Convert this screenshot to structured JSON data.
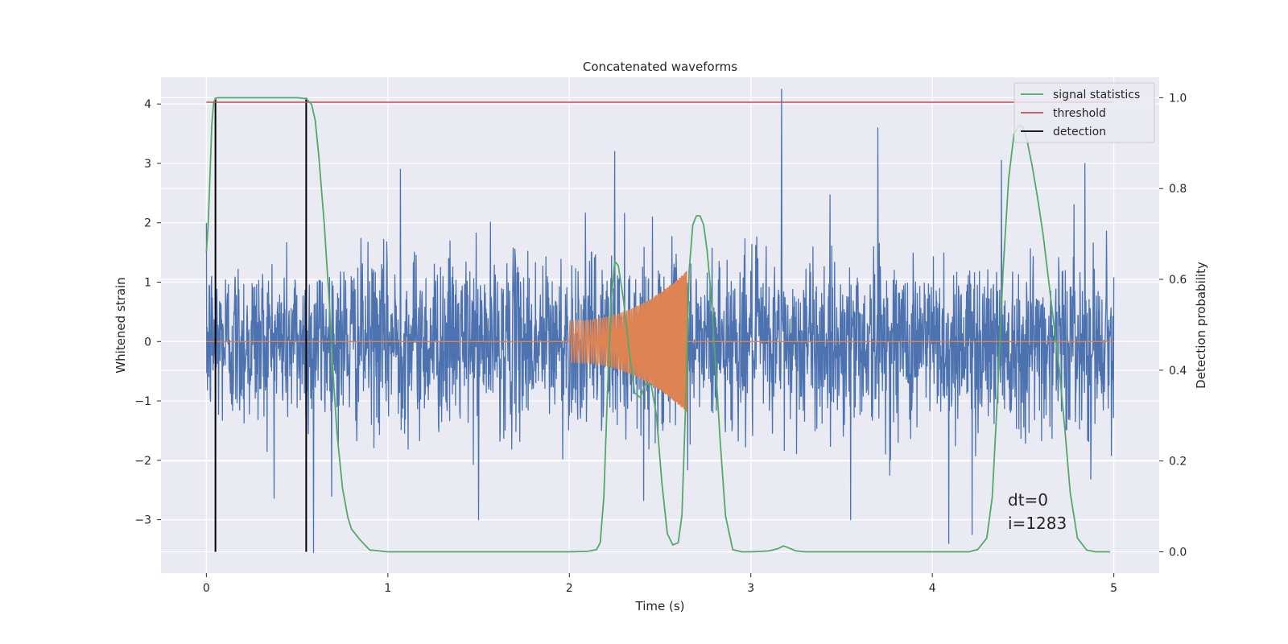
{
  "chart_data": {
    "type": "line",
    "title": "Concatenated waveforms",
    "xlabel": "Time (s)",
    "ylabel": "Whitened strain",
    "y2label": "Detection probability",
    "xlim": [
      -0.25,
      5.25
    ],
    "ylim": [
      -3.9,
      4.45
    ],
    "y2lim": [
      -0.047,
      1.045
    ],
    "x_ticks": [
      0,
      1,
      2,
      3,
      4,
      5
    ],
    "y_ticks": [
      -3,
      -2,
      -1,
      0,
      1,
      2,
      3,
      4
    ],
    "y2_ticks": [
      0.0,
      0.2,
      0.4,
      0.6,
      0.8,
      1.0
    ],
    "x_tick_labels": [
      "0",
      "1",
      "2",
      "3",
      "4",
      "5"
    ],
    "y_tick_labels": [
      "−3",
      "−2",
      "−1",
      "0",
      "1",
      "2",
      "3",
      "4"
    ],
    "y2_tick_labels": [
      "0.0",
      "0.2",
      "0.4",
      "0.6",
      "0.8",
      "1.0"
    ],
    "grid": true,
    "legend_position": "top-right",
    "annotations": [
      "dt=0",
      "i=1283"
    ],
    "colors": {
      "noise": "#4c72b0",
      "waveform": "#dd8452",
      "signal_statistics": "#55a868",
      "threshold": "#c44e52",
      "detection": "#000000",
      "background": "#eaeaf2",
      "grid": "#ffffff"
    },
    "series": [
      {
        "key": "noise",
        "axis": "left",
        "description_values": "whitened noise strain, approx. normal with sd ~0.75, spikes up to ~4.2 and down to ~-3.6",
        "x_range": [
          0,
          5
        ],
        "notable_peaks": [
          [
            0.59,
            2.75
          ],
          [
            1.07,
            2.9
          ],
          [
            1.73,
            1.0
          ],
          [
            2.25,
            3.2
          ],
          [
            3.17,
            4.25
          ],
          [
            3.7,
            3.6
          ],
          [
            4.38,
            3.05
          ],
          [
            4.84,
            3.0
          ]
        ],
        "notable_troughs": [
          [
            0.59,
            -3.55
          ],
          [
            1.5,
            -3.0
          ],
          [
            3.55,
            -3.0
          ],
          [
            4.09,
            -3.4
          ],
          [
            4.22,
            -3.25
          ]
        ]
      },
      {
        "key": "waveform",
        "axis": "left",
        "x_range": [
          2.0,
          2.65
        ],
        "description_values": "chirp waveform, amplitude grows from ~0.35 at 2.0 s to ~1.2 at 2.64 s, zero elsewhere"
      },
      {
        "name": "signal statistics",
        "axis": "right",
        "x": [
          0.0,
          0.01,
          0.02,
          0.03,
          0.04,
          0.05,
          0.06,
          0.08,
          0.1,
          0.2,
          0.3,
          0.4,
          0.5,
          0.55,
          0.58,
          0.6,
          0.62,
          0.65,
          0.68,
          0.7,
          0.72,
          0.75,
          0.78,
          0.8,
          0.85,
          0.9,
          1.0,
          1.5,
          2.0,
          2.1,
          2.15,
          2.17,
          2.19,
          2.21,
          2.23,
          2.25,
          2.27,
          2.3,
          2.33,
          2.36,
          2.39,
          2.42,
          2.45,
          2.48,
          2.51,
          2.54,
          2.57,
          2.6,
          2.62,
          2.64,
          2.66,
          2.68,
          2.7,
          2.72,
          2.74,
          2.76,
          2.78,
          2.8,
          2.83,
          2.86,
          2.9,
          2.95,
          3.0,
          3.1,
          3.15,
          3.18,
          3.2,
          3.25,
          3.3,
          3.5,
          4.0,
          4.2,
          4.25,
          4.3,
          4.33,
          4.36,
          4.39,
          4.42,
          4.45,
          4.48,
          4.5,
          4.52,
          4.55,
          4.58,
          4.61,
          4.64,
          4.67,
          4.7,
          4.73,
          4.76,
          4.8,
          4.85,
          4.9,
          4.95,
          4.98
        ],
        "values": [
          0.66,
          0.72,
          0.83,
          0.94,
          0.99,
          0.998,
          1.0,
          1.0,
          1.0,
          1.0,
          1.0,
          1.0,
          1.0,
          0.998,
          0.985,
          0.95,
          0.87,
          0.72,
          0.53,
          0.38,
          0.26,
          0.14,
          0.075,
          0.05,
          0.025,
          0.004,
          0.0,
          0.0,
          0.0,
          0.001,
          0.005,
          0.02,
          0.12,
          0.35,
          0.55,
          0.64,
          0.63,
          0.55,
          0.44,
          0.35,
          0.34,
          0.37,
          0.37,
          0.3,
          0.15,
          0.04,
          0.015,
          0.02,
          0.08,
          0.32,
          0.62,
          0.72,
          0.74,
          0.74,
          0.72,
          0.66,
          0.57,
          0.45,
          0.25,
          0.08,
          0.005,
          0.0,
          0.0,
          0.002,
          0.007,
          0.013,
          0.01,
          0.002,
          0.0,
          0.0,
          0.0,
          0.0,
          0.005,
          0.03,
          0.12,
          0.35,
          0.62,
          0.82,
          0.92,
          0.94,
          0.935,
          0.91,
          0.85,
          0.78,
          0.7,
          0.6,
          0.5,
          0.4,
          0.27,
          0.13,
          0.03,
          0.004,
          0.0,
          0.0,
          0.0
        ]
      },
      {
        "name": "threshold",
        "axis": "right",
        "x": [
          0,
          5
        ],
        "values": [
          0.99,
          0.99
        ]
      },
      {
        "name": "detection",
        "axis": "right",
        "vlines_x": [
          0.05,
          0.55
        ],
        "vline_range": [
          0,
          1
        ]
      }
    ]
  }
}
